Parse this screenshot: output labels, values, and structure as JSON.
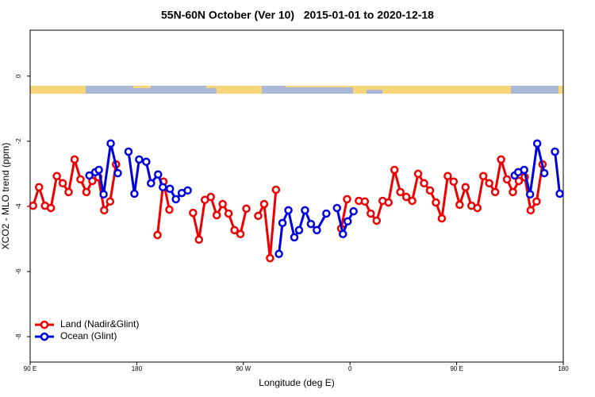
{
  "chart_data": {
    "type": "line",
    "title": "55N-60N October (Ver 10)   2015-01-01 to 2020-12-18",
    "x_label": "Longitude (deg E)",
    "y_label": "XCO2 - MLO trend (ppm)",
    "xlim": [
      90,
      540
    ],
    "ylim": [
      -8.78,
      1.41
    ],
    "xticks": [
      {
        "value": 90,
        "label": "90 E"
      },
      180,
      {
        "value": 270,
        "label": "90 W"
      },
      {
        "value": 360,
        "label": "0"
      },
      {
        "value": 450,
        "label": "90 E"
      },
      {
        "value": 540,
        "label": "180"
      }
    ],
    "yticks": [
      0,
      -2,
      -4,
      -6,
      -8
    ],
    "grid": false,
    "legend": "bottom-left",
    "series": [
      {
        "name": "Land (Nadir&Glint)",
        "color": "#ee0000",
        "x": [
          92.5,
          97.5,
          102.5,
          107.5,
          112.5,
          117.5,
          122.5,
          127.5,
          132.5,
          137.5,
          142.5,
          147.5,
          152.5,
          157.5,
          162.5,
          167.5,
          197.5,
          202.5,
          207.5,
          212.5,
          227.5,
          232.5,
          237.5,
          242.5,
          247.5,
          252.5,
          257.5,
          262.5,
          267.5,
          272.5,
          277.5,
          282.5,
          287.5,
          292.5,
          297.5,
          302.5,
          352.5,
          357.5,
          362.5,
          367.5,
          372.5,
          377.5,
          382.5,
          387.5,
          392.5,
          397.5,
          402.5,
          407.5,
          412.5,
          417.5,
          422.5,
          427.5,
          432.5,
          437.5,
          442.5,
          447.5,
          452.5,
          457.5,
          462.5,
          467.5,
          472.5,
          477.5,
          482.5,
          487.5,
          492.5,
          497.5,
          502.5,
          507.5,
          512.5,
          517.5,
          522.5
        ],
        "values": [
          -3.98,
          -3.41,
          -3.98,
          -4.05,
          -3.07,
          -3.29,
          -3.56,
          -2.56,
          -3.17,
          -3.56,
          -3.22,
          -3.1,
          -4.12,
          -3.85,
          -2.71,
          null,
          -4.88,
          -3.24,
          -4.1,
          null,
          -4.2,
          -5.02,
          -3.8,
          -3.71,
          -4.27,
          -3.93,
          -4.22,
          -4.73,
          -4.85,
          -4.07,
          null,
          -4.29,
          -3.93,
          -5.59,
          -3.49,
          null,
          -4.68,
          -3.78,
          null,
          -3.83,
          -3.85,
          -4.22,
          -4.44,
          -3.83,
          -3.88,
          -2.88,
          -3.56,
          -3.71,
          -3.83,
          -3.0,
          -3.29,
          -3.51,
          -3.88,
          -4.37,
          -3.07,
          -3.24,
          -3.95,
          -3.41,
          -3.98,
          -4.05,
          -3.07,
          -3.29,
          -3.56,
          -2.56,
          -3.17,
          -3.56,
          -3.22,
          -3.1,
          -4.12,
          -3.85,
          -2.71
        ]
      },
      {
        "name": "Ocean (Glint)",
        "color": "#0000dd",
        "x": [
          140,
          145,
          148,
          152,
          158,
          164,
          168,
          173,
          178,
          182,
          188,
          192,
          198,
          202,
          208,
          213,
          218,
          223,
          260,
          300,
          303,
          308,
          313,
          317,
          322,
          327,
          332,
          340,
          345,
          349,
          354,
          358,
          363,
          450,
          499,
          502,
          507,
          512,
          518,
          524,
          528,
          533,
          537
        ],
        "values": [
          -3.05,
          -2.95,
          -2.88,
          -3.63,
          -2.07,
          -2.98,
          null,
          -2.32,
          -3.61,
          -2.56,
          -2.63,
          -3.29,
          -3.02,
          -3.41,
          -3.46,
          -3.78,
          -3.59,
          -3.51,
          null,
          -5.46,
          -4.51,
          -4.12,
          -4.95,
          -4.73,
          -4.12,
          -4.54,
          -4.73,
          -4.22,
          null,
          -4.05,
          -4.85,
          -4.46,
          -4.15,
          null,
          -3.05,
          -2.95,
          -2.88,
          -3.63,
          -2.07,
          -2.98,
          null,
          -2.32,
          -3.61
        ]
      }
    ]
  }
}
